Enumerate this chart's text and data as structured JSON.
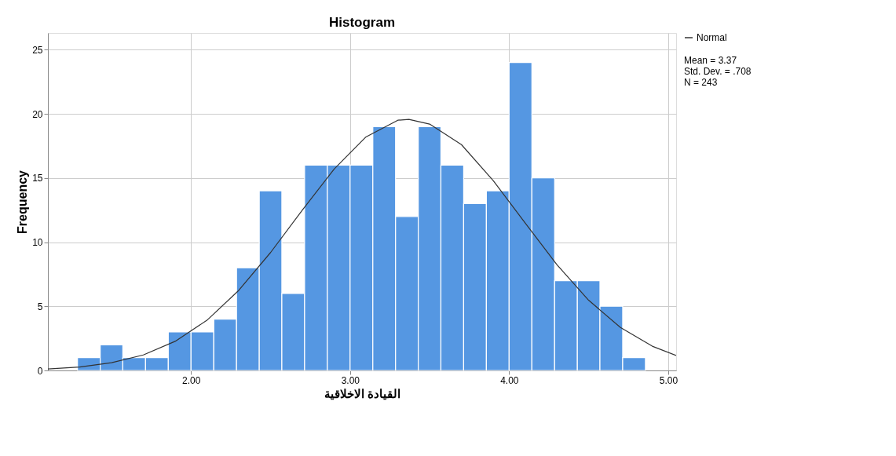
{
  "chart_data": {
    "type": "histogram",
    "title": "Histogram",
    "xlabel": "القيادة الاخلاقية",
    "ylabel": "Frequency",
    "bins": [
      1.286,
      1.429,
      1.571,
      1.714,
      1.857,
      2.0,
      2.143,
      2.286,
      2.429,
      2.571,
      2.714,
      2.857,
      3.0,
      3.143,
      3.286,
      3.429,
      3.571,
      3.714,
      3.857,
      4.0,
      4.143,
      4.286,
      4.429,
      4.571,
      4.714,
      4.857
    ],
    "values": [
      1,
      2,
      1,
      1,
      3,
      3,
      4,
      8,
      14,
      6,
      16,
      16,
      16,
      19,
      12,
      19,
      16,
      13,
      14,
      24,
      15,
      7,
      7,
      5,
      1
    ],
    "color": "#5597e2",
    "series": [
      {
        "name": "Normal",
        "type": "line",
        "color": "#333333",
        "x": [
          1.1,
          1.3,
          1.5,
          1.7,
          1.9,
          2.1,
          2.3,
          2.5,
          2.7,
          2.9,
          3.1,
          3.3,
          3.37,
          3.5,
          3.7,
          3.9,
          4.1,
          4.3,
          4.5,
          4.7,
          4.9,
          5.05
        ],
        "values": [
          0.11,
          0.27,
          0.6,
          1.21,
          2.27,
          3.91,
          6.24,
          9.19,
          12.5,
          15.7,
          18.2,
          19.5,
          19.56,
          19.2,
          17.6,
          14.8,
          11.5,
          8.25,
          5.47,
          3.35,
          1.89,
          1.17
        ]
      }
    ],
    "xlim": [
      1.1,
      5.05
    ],
    "ylim": [
      0,
      26.3
    ],
    "xticks": [
      {
        "value": 2,
        "label": "2.00"
      },
      {
        "value": 3,
        "label": "3.00"
      },
      {
        "value": 4,
        "label": "4.00"
      },
      {
        "value": 5,
        "label": "5.00"
      }
    ],
    "yticks": [
      0,
      5,
      10,
      15,
      20,
      25
    ],
    "grid": true,
    "legend": "top right",
    "annotations": [
      "Mean = 3.37",
      "Std. Dev. = .708",
      "N = 243"
    ]
  }
}
